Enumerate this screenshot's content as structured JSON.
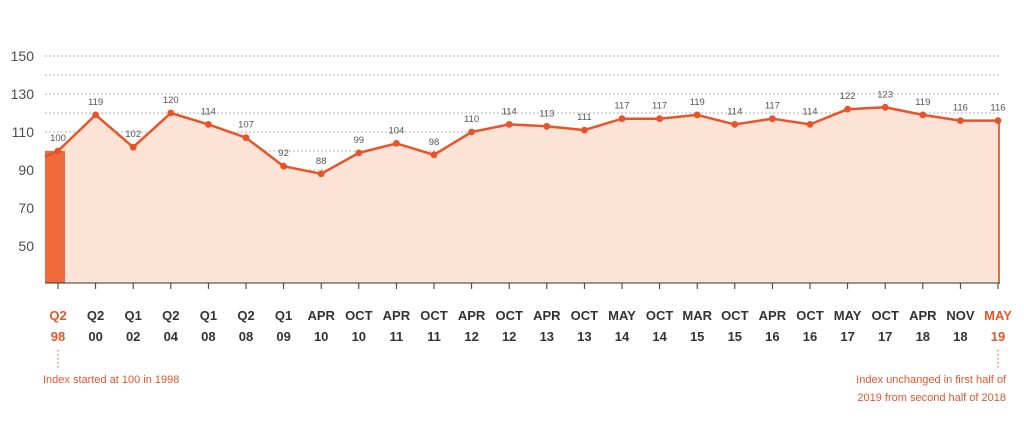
{
  "chart_data": {
    "type": "area",
    "y_ticks": [
      50,
      70,
      90,
      110,
      130,
      150
    ],
    "ylim": [
      30,
      158
    ],
    "grid": true,
    "x": [
      {
        "top": "Q2",
        "bottom": "98",
        "highlight": true
      },
      {
        "top": "Q2",
        "bottom": "00"
      },
      {
        "top": "Q1",
        "bottom": "02"
      },
      {
        "top": "Q2",
        "bottom": "04"
      },
      {
        "top": "Q1",
        "bottom": "08"
      },
      {
        "top": "Q2",
        "bottom": "08"
      },
      {
        "top": "Q1",
        "bottom": "09"
      },
      {
        "top": "APR",
        "bottom": "10"
      },
      {
        "top": "OCT",
        "bottom": "10"
      },
      {
        "top": "APR",
        "bottom": "11"
      },
      {
        "top": "OCT",
        "bottom": "11"
      },
      {
        "top": "APR",
        "bottom": "12"
      },
      {
        "top": "OCT",
        "bottom": "12"
      },
      {
        "top": "APR",
        "bottom": "13"
      },
      {
        "top": "OCT",
        "bottom": "13"
      },
      {
        "top": "MAY",
        "bottom": "14"
      },
      {
        "top": "OCT",
        "bottom": "14"
      },
      {
        "top": "MAR",
        "bottom": "15"
      },
      {
        "top": "OCT",
        "bottom": "15"
      },
      {
        "top": "APR",
        "bottom": "16"
      },
      {
        "top": "OCT",
        "bottom": "16"
      },
      {
        "top": "MAY",
        "bottom": "17"
      },
      {
        "top": "OCT",
        "bottom": "17"
      },
      {
        "top": "APR",
        "bottom": "18"
      },
      {
        "top": "NOV",
        "bottom": "18"
      },
      {
        "top": "MAY",
        "bottom": "19",
        "highlight": true
      }
    ],
    "values": [
      100,
      119,
      102,
      120,
      114,
      107,
      92,
      88,
      99,
      104,
      98,
      110,
      114,
      113,
      111,
      117,
      117,
      119,
      114,
      117,
      114,
      122,
      123,
      119,
      116,
      116
    ],
    "data_labels": [
      "100",
      "119",
      "102",
      "120",
      "114",
      "107",
      "92",
      "88",
      "99",
      "104",
      "98",
      "110",
      "114",
      "113",
      "111",
      "117",
      "117",
      "119",
      "114",
      "117",
      "114",
      "122",
      "123",
      "119",
      "116",
      "116"
    ],
    "colors": {
      "line": "#e8542a",
      "area": "#fde3d6",
      "highlight_bar": "#f06a3c",
      "grid": "#9a9a9a",
      "axis": "#333333"
    }
  },
  "annotations": {
    "left": "Index started at 100 in 1998",
    "right_line1": "Index unchanged in first half of",
    "right_line2": "2019 from second half of 2018"
  }
}
